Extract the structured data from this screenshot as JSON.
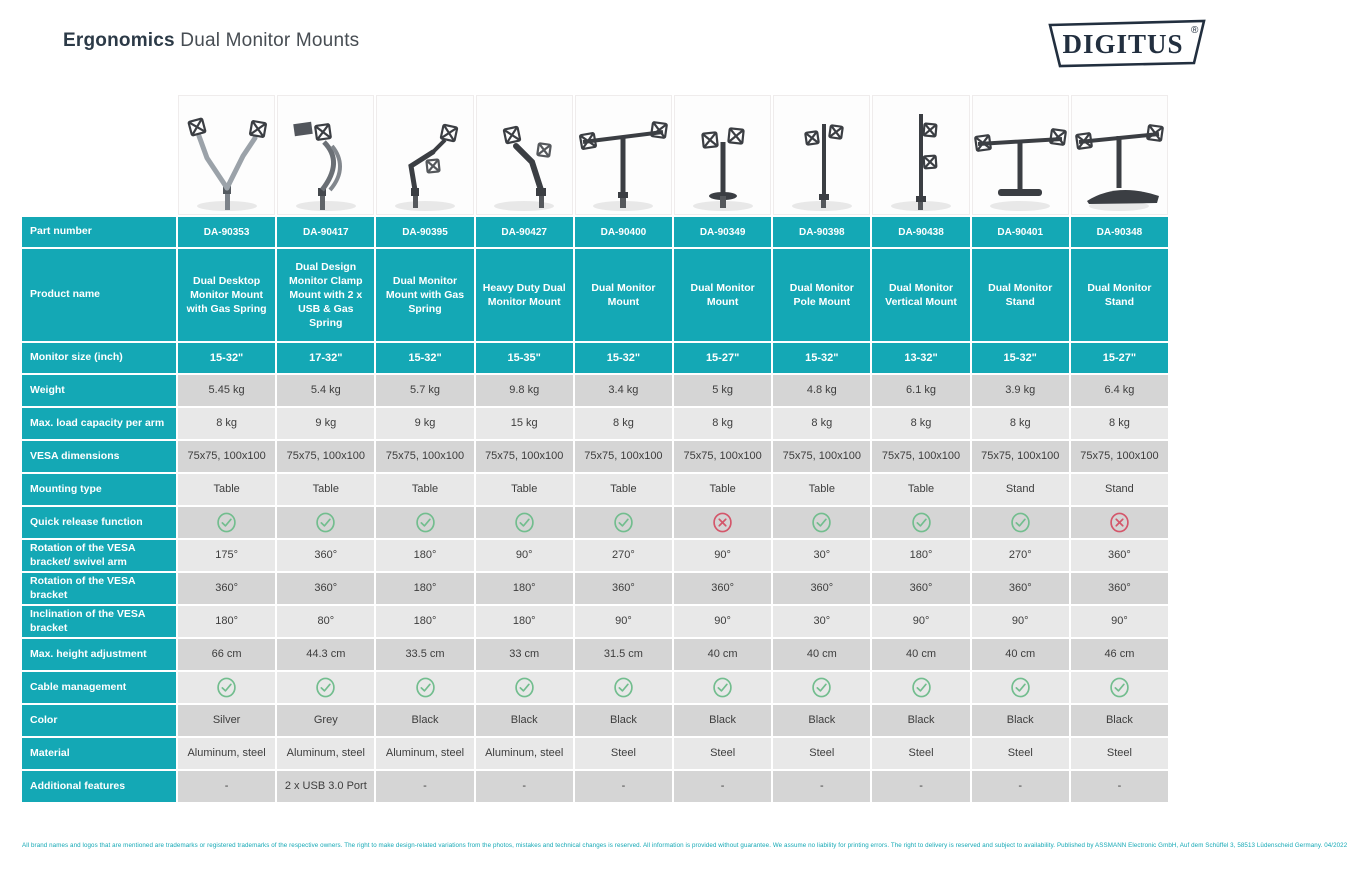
{
  "header": {
    "title_bold": "Ergonomics",
    "title_rest": " Dual Monitor Mounts",
    "brand": "DIGITUS",
    "brand_reg": "®"
  },
  "colors": {
    "accent_teal": "#14a8b5",
    "row_gray_dark": "#d5d5d5",
    "row_gray_light": "#e8e8e8",
    "check_green": "#72bd8e",
    "cross_red": "#d4566a",
    "logo_navy": "#222f3f"
  },
  "table": {
    "row_labels": [
      "Part number",
      "Product name",
      "Monitor size (inch)",
      "Weight",
      "Max. load capacity per arm",
      "VESA dimensions",
      "Mounting type",
      "Quick release function",
      "Rotation of the VESA bracket/ swivel arm",
      "Rotation of the VESA bracket",
      "Inclination of the VESA bracket",
      "Max. height adjustment",
      "Cable management",
      "Color",
      "Material",
      "Additional features"
    ],
    "products": [
      {
        "part_number": "DA-90353",
        "name": "Dual Desktop Monitor Mount with Gas Spring",
        "monitor_size": "15-32\"",
        "weight": "5.45 kg",
        "max_load": "8 kg",
        "vesa": "75x75, 100x100",
        "mounting": "Table",
        "quick_release": true,
        "rotation_swivel": "175°",
        "rotation_bracket": "360°",
        "inclination": "180°",
        "height_adjustment": "66 cm",
        "cable_management": true,
        "color": "Silver",
        "material": "Aluminum, steel",
        "additional": "-",
        "image": "gas-spring-silver"
      },
      {
        "part_number": "DA-90417",
        "name": "Dual Design Monitor Clamp Mount with 2 x USB & Gas Spring",
        "monitor_size": "17-32\"",
        "weight": "5.4 kg",
        "max_load": "9 kg",
        "vesa": "75x75, 100x100",
        "mounting": "Table",
        "quick_release": true,
        "rotation_swivel": "360°",
        "rotation_bracket": "360°",
        "inclination": "80°",
        "height_adjustment": "44.3 cm",
        "cable_management": true,
        "color": "Grey",
        "material": "Aluminum, steel",
        "additional": "2 x USB 3.0 Port",
        "image": "gas-spring-grey"
      },
      {
        "part_number": "DA-90395",
        "name": "Dual Monitor Mount with Gas Spring",
        "monitor_size": "15-32\"",
        "weight": "5.7 kg",
        "max_load": "9 kg",
        "vesa": "75x75, 100x100",
        "mounting": "Table",
        "quick_release": true,
        "rotation_swivel": "180°",
        "rotation_bracket": "180°",
        "inclination": "180°",
        "height_adjustment": "33.5 cm",
        "cable_management": true,
        "color": "Black",
        "material": "Aluminum, steel",
        "additional": "-",
        "image": "gas-spring-black"
      },
      {
        "part_number": "DA-90427",
        "name": "Heavy Duty Dual Monitor Mount",
        "monitor_size": "15-35\"",
        "weight": "9.8 kg",
        "max_load": "15 kg",
        "vesa": "75x75, 100x100",
        "mounting": "Table",
        "quick_release": true,
        "rotation_swivel": "90°",
        "rotation_bracket": "180°",
        "inclination": "180°",
        "height_adjustment": "33 cm",
        "cable_management": true,
        "color": "Black",
        "material": "Aluminum, steel",
        "additional": "-",
        "image": "heavy-duty"
      },
      {
        "part_number": "DA-90400",
        "name": "Dual Monitor Mount",
        "monitor_size": "15-32\"",
        "weight": "3.4 kg",
        "max_load": "8 kg",
        "vesa": "75x75, 100x100",
        "mounting": "Table",
        "quick_release": true,
        "rotation_swivel": "270°",
        "rotation_bracket": "360°",
        "inclination": "90°",
        "height_adjustment": "31.5 cm",
        "cable_management": true,
        "color": "Black",
        "material": "Steel",
        "additional": "-",
        "image": "crossbar-clamp"
      },
      {
        "part_number": "DA-90349",
        "name": "Dual Monitor Mount",
        "monitor_size": "15-27\"",
        "weight": "5 kg",
        "max_load": "8 kg",
        "vesa": "75x75, 100x100",
        "mounting": "Table",
        "quick_release": false,
        "rotation_swivel": "90°",
        "rotation_bracket": "360°",
        "inclination": "90°",
        "height_adjustment": "40 cm",
        "cable_management": true,
        "color": "Black",
        "material": "Steel",
        "additional": "-",
        "image": "dual-clamp-short"
      },
      {
        "part_number": "DA-90398",
        "name": "Dual Monitor Pole Mount",
        "monitor_size": "15-32\"",
        "weight": "4.8 kg",
        "max_load": "8 kg",
        "vesa": "75x75, 100x100",
        "mounting": "Table",
        "quick_release": true,
        "rotation_swivel": "30°",
        "rotation_bracket": "360°",
        "inclination": "30°",
        "height_adjustment": "40 cm",
        "cable_management": true,
        "color": "Black",
        "material": "Steel",
        "additional": "-",
        "image": "pole-mount"
      },
      {
        "part_number": "DA-90438",
        "name": "Dual Monitor Vertical Mount",
        "monitor_size": "13-32\"",
        "weight": "6.1 kg",
        "max_load": "8 kg",
        "vesa": "75x75, 100x100",
        "mounting": "Table",
        "quick_release": true,
        "rotation_swivel": "180°",
        "rotation_bracket": "360°",
        "inclination": "90°",
        "height_adjustment": "40 cm",
        "cable_management": true,
        "color": "Black",
        "material": "Steel",
        "additional": "-",
        "image": "vertical-mount"
      },
      {
        "part_number": "DA-90401",
        "name": "Dual Monitor Stand",
        "monitor_size": "15-32\"",
        "weight": "3.9 kg",
        "max_load": "8 kg",
        "vesa": "75x75, 100x100",
        "mounting": "Stand",
        "quick_release": true,
        "rotation_swivel": "270°",
        "rotation_bracket": "360°",
        "inclination": "90°",
        "height_adjustment": "40 cm",
        "cable_management": true,
        "color": "Black",
        "material": "Steel",
        "additional": "-",
        "image": "stand-flat"
      },
      {
        "part_number": "DA-90348",
        "name": "Dual Monitor Stand",
        "monitor_size": "15-27\"",
        "weight": "6.4 kg",
        "max_load": "8 kg",
        "vesa": "75x75, 100x100",
        "mounting": "Stand",
        "quick_release": false,
        "rotation_swivel": "360°",
        "rotation_bracket": "360°",
        "inclination": "90°",
        "height_adjustment": "46 cm",
        "cable_management": true,
        "color": "Black",
        "material": "Steel",
        "additional": "-",
        "image": "stand-curved"
      }
    ]
  },
  "footer": {
    "text": "All brand names and logos that are mentioned are trademarks or registered trademarks of the respective owners. The right to make design-related variations from the photos, mistakes and technical changes is reserved. All information is provided without guarantee. We assume no liability for printing errors. The right to delivery is reserved and subject to availability. Published by ASSMANN Electronic GmbH, Auf dem Schüffel 3, 58513 Lüdenscheid   Germany. 04/2022"
  }
}
